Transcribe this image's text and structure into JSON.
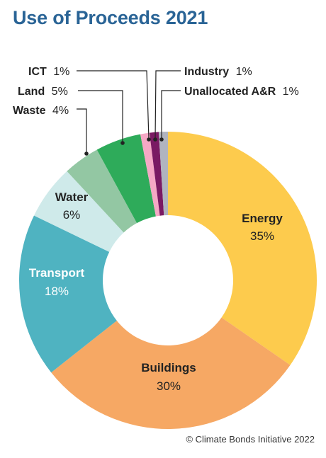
{
  "title": "Use of Proceeds 2021",
  "copyright": "© Climate Bonds Initiative 2022",
  "chart_data": {
    "type": "pie",
    "title": "Use of Proceeds 2021",
    "categories": [
      "Energy",
      "Buildings",
      "Transport",
      "Water",
      "Waste",
      "Land",
      "ICT",
      "Industry",
      "Unallocated A&R"
    ],
    "values": [
      35,
      30,
      18,
      6,
      4,
      5,
      1,
      1,
      1
    ],
    "labels": [
      "35%",
      "30%",
      "18%",
      "6%",
      "4%",
      "5%",
      "1%",
      "1%",
      "1%"
    ],
    "colors": [
      "#fdcb4d",
      "#f6a864",
      "#4fb3c1",
      "#cfeaea",
      "#93c7a3",
      "#2eab5a",
      "#f5a8c5",
      "#7a1a63",
      "#b0b4bf"
    ],
    "label_colors": [
      "#222222",
      "#222222",
      "#ffffff",
      "#222222",
      "#222222",
      "#222222",
      "#222222",
      "#222222",
      "#222222"
    ],
    "donut": true
  }
}
